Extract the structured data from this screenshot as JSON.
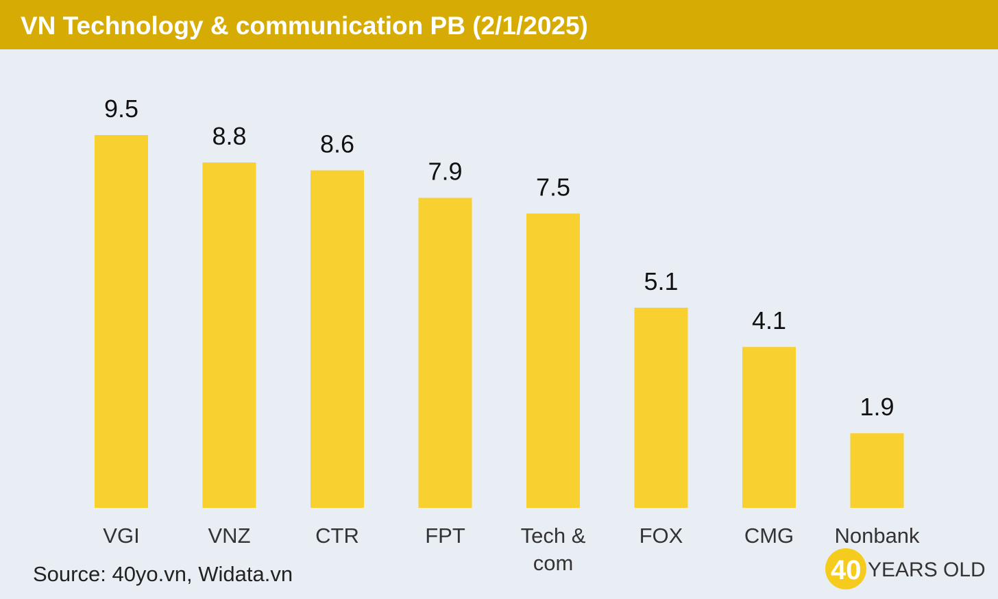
{
  "title": "VN Technology & communication PB (2/1/2025)",
  "source": "Source: 40yo.vn, Widata.vn",
  "logo": {
    "number": "40",
    "text": "YEARS OLD"
  },
  "colors": {
    "header": "#d6ac04",
    "bar": "#f8d030",
    "background": "#e9eef5",
    "text": "#111111"
  },
  "chart_data": {
    "type": "bar",
    "title": "VN Technology & communication PB (2/1/2025)",
    "categories": [
      "VGI",
      "VNZ",
      "CTR",
      "FPT",
      "Tech & com",
      "FOX",
      "CMG",
      "Nonbank"
    ],
    "values": [
      9.5,
      8.8,
      8.6,
      7.9,
      7.5,
      5.1,
      4.1,
      1.9
    ],
    "labels": [
      "9.5",
      "8.8",
      "8.6",
      "7.9",
      "7.5",
      "5.1",
      "4.1",
      "1.9"
    ],
    "xlabel": "",
    "ylabel": "",
    "grid": false,
    "legend": "none"
  }
}
